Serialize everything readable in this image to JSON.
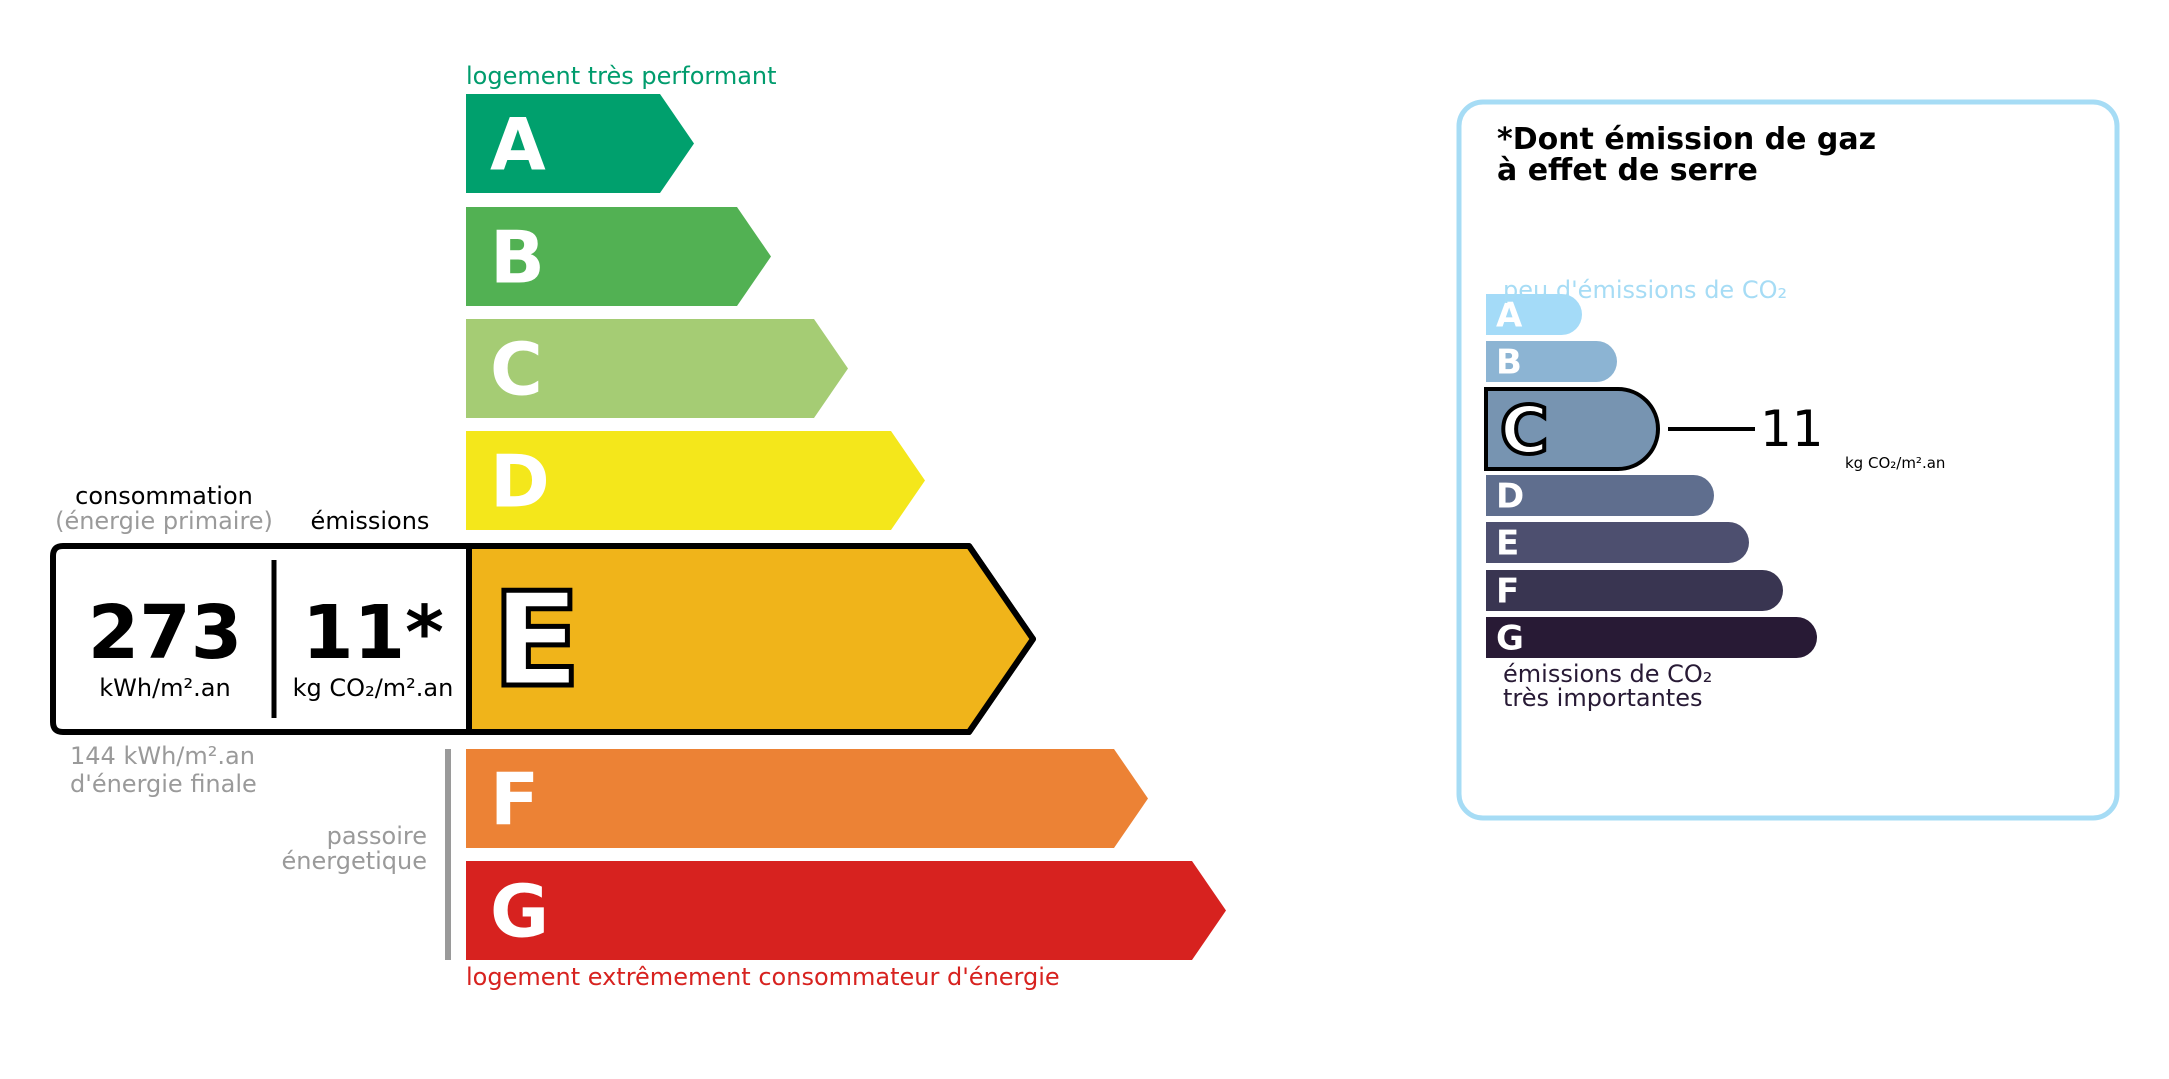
{
  "energy": {
    "top_label": "logement très performant",
    "bottom_label": "logement extrêmement consommateur d'énergie",
    "top_color": "#009c6d",
    "bottom_color": "#d7221f",
    "current_grade": "E",
    "grades": [
      {
        "letter": "A",
        "color": "#00a06d"
      },
      {
        "letter": "B",
        "color": "#52b153"
      },
      {
        "letter": "C",
        "color": "#a5cc74"
      },
      {
        "letter": "D",
        "color": "#f4e71b"
      },
      {
        "letter": "E",
        "color": "#f0b41a"
      },
      {
        "letter": "F",
        "color": "#ec8235"
      },
      {
        "letter": "G",
        "color": "#d7221f"
      }
    ],
    "consumption_label": "consommation",
    "consumption_sublabel": "(énergie primaire)",
    "emissions_label": "émissions",
    "consumption_value": "273",
    "consumption_unit": "kWh/m².an",
    "emissions_value": "11*",
    "emissions_unit": "kg CO₂/m².an",
    "final_energy_value": "144 kWh/m².an",
    "final_energy_label": "d'énergie finale",
    "passoire_line1": "passoire",
    "passoire_line2": "énergetique"
  },
  "ges": {
    "title_line1": "*Dont émission de gaz",
    "title_line2": "à effet de serre",
    "top_label": "peu d'émissions de CO₂",
    "bottom_line1": "émissions de CO₂",
    "bottom_line2": "très importantes",
    "border_color": "#a6dcf5",
    "current_grade": "C",
    "value": "11",
    "unit": "kg CO₂/m².an",
    "grades": [
      {
        "letter": "A",
        "color": "#a4dbf8"
      },
      {
        "letter": "B",
        "color": "#8cb4d3"
      },
      {
        "letter": "C",
        "color": "#7794b1"
      },
      {
        "letter": "D",
        "color": "#5f6e8e"
      },
      {
        "letter": "E",
        "color": "#4d4f6f"
      },
      {
        "letter": "F",
        "color": "#393551"
      },
      {
        "letter": "G",
        "color": "#281a35"
      }
    ]
  }
}
